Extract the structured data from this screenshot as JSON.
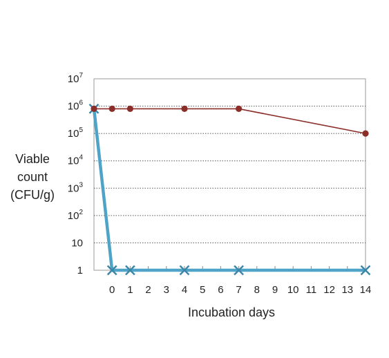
{
  "chart_data": {
    "type": "line",
    "title": "",
    "xlabel": "Incubation days",
    "ylabel_lines": [
      "Viable",
      "count",
      "(CFU/g)"
    ],
    "y_scale": "log",
    "ylim": [
      1,
      10000000
    ],
    "y_ticks": [
      {
        "value": 1,
        "base": "1",
        "exp": ""
      },
      {
        "value": 10,
        "base": "10",
        "exp": ""
      },
      {
        "value": 100,
        "base": "10",
        "exp": "2"
      },
      {
        "value": 1000,
        "base": "10",
        "exp": "3"
      },
      {
        "value": 10000,
        "base": "10",
        "exp": "4"
      },
      {
        "value": 100000,
        "base": "10",
        "exp": "5"
      },
      {
        "value": 1000000,
        "base": "10",
        "exp": "6"
      },
      {
        "value": 10000000,
        "base": "10",
        "exp": "7"
      }
    ],
    "x_ticks": [
      0,
      1,
      2,
      3,
      4,
      5,
      6,
      7,
      8,
      9,
      10,
      11,
      12,
      13,
      14
    ],
    "xlim": [
      -1,
      14
    ],
    "grid": "horizontal dotted",
    "series": [
      {
        "color": "#8b2e2a",
        "marker": "circle",
        "points": [
          [
            -1,
            800000
          ],
          [
            0,
            800000
          ],
          [
            1,
            800000
          ],
          [
            4,
            800000
          ],
          [
            7,
            800000
          ],
          [
            14,
            100000
          ]
        ]
      },
      {
        "color": "#4fa3c7",
        "marker": "x",
        "points": [
          [
            -1,
            800000
          ],
          [
            0,
            1
          ],
          [
            1,
            1
          ],
          [
            4,
            1
          ],
          [
            7,
            1
          ],
          [
            14,
            1
          ]
        ]
      }
    ]
  }
}
